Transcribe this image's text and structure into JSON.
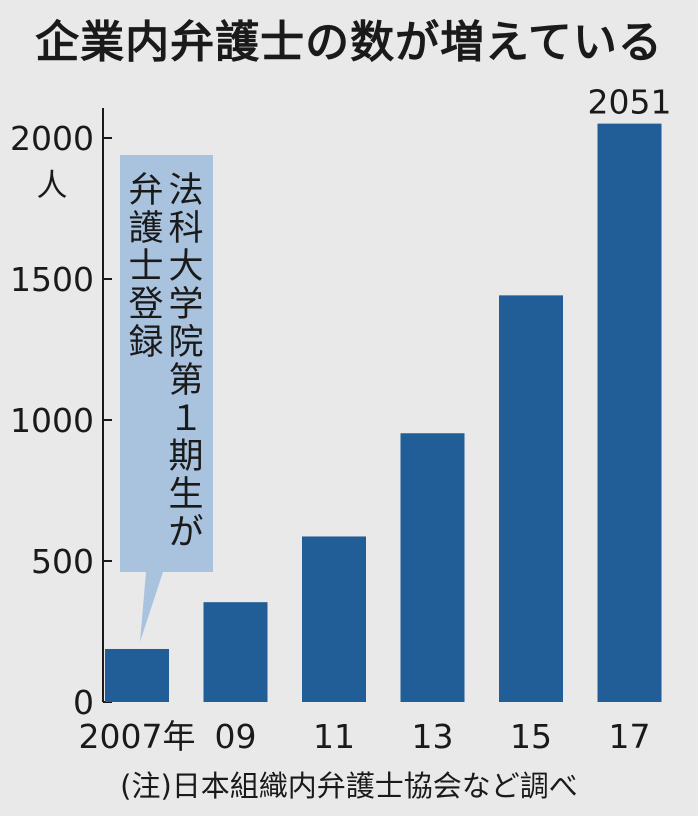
{
  "chart_data": {
    "type": "bar",
    "title": "企業内弁護士の数が増えている",
    "unit_label": "人",
    "categories": [
      "2007年",
      "09",
      "11",
      "13",
      "15",
      "17"
    ],
    "values": [
      188,
      354,
      587,
      953,
      1442,
      2051
    ],
    "data_labels": {
      "5": "2051"
    },
    "ylim": [
      0,
      2000
    ],
    "yticks": [
      0,
      500,
      1000,
      1500,
      2000
    ],
    "grid": false,
    "annotation": {
      "col1": "法科大学院第１期生が",
      "col2": "弁護士登録",
      "points_to": "2007年"
    },
    "source": "(注)日本組織内弁護士協会など調べ"
  },
  "colors": {
    "bar": "#215d96",
    "background": "#e9e9e9",
    "annotation_bg": "#a9c3df",
    "text": "#1a1a1a"
  }
}
